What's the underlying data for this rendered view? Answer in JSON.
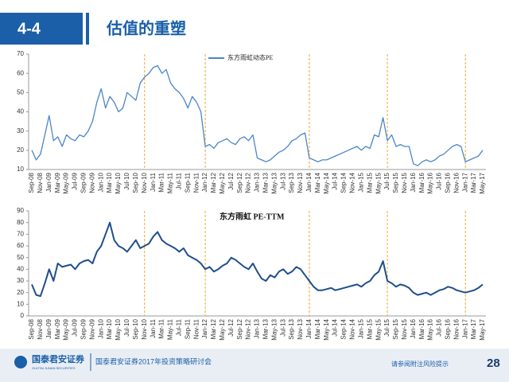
{
  "header": {
    "section": "4-4",
    "title": "估值的重塑"
  },
  "chart_data": [
    {
      "type": "line",
      "categories": [
        "Sep-08",
        null,
        "Nov-08",
        null,
        "Jan-09",
        null,
        "Mar-09",
        null,
        "May-09",
        null,
        "Jul-09",
        null,
        "Sep-09",
        null,
        "Nov-09",
        null,
        "Jan-10",
        null,
        "Mar-10",
        null,
        "May-10",
        null,
        "Jul-10",
        null,
        "Sep-10",
        null,
        "Nov-10",
        null,
        "Jan-11",
        null,
        "Mar-11",
        null,
        "May-11",
        null,
        "Jul-11",
        null,
        "Sep-11",
        null,
        "Nov-11",
        null,
        "Jan-12",
        null,
        "Mar-12",
        null,
        "May-12",
        null,
        "Jul-12",
        null,
        "Sep-12",
        null,
        "Nov-12",
        null,
        "Jan-13",
        null,
        "Mar-13",
        null,
        "May-13",
        null,
        "Jul-13",
        null,
        "Sep-13",
        null,
        "Nov-13",
        null,
        "Jan-14",
        null,
        "Mar-14",
        null,
        "May-14",
        null,
        "Jul-14",
        null,
        "Sep-14",
        null,
        "Nov-14",
        null,
        "Jan-15",
        null,
        "Mar-15",
        null,
        "May-15",
        null,
        "Jul-15",
        null,
        "Sep-15",
        null,
        "Nov-15",
        null,
        "Jan-16",
        null,
        "Mar-16",
        null,
        "May-16",
        null,
        "Jul-16",
        null,
        "Sep-16",
        null,
        "Nov-16",
        null,
        "Jan-17",
        null,
        "Mar-17",
        null,
        "May-17"
      ],
      "series": [
        {
          "name": "东方雨虹动态PE",
          "color": "#4a86c8",
          "values": [
            20,
            15,
            18,
            28,
            38,
            25,
            27,
            22,
            28,
            26,
            25,
            28,
            27,
            30,
            35,
            45,
            52,
            42,
            48,
            45,
            40,
            42,
            50,
            48,
            46,
            55,
            58,
            60,
            63,
            64,
            60,
            62,
            55,
            52,
            50,
            47,
            42,
            48,
            45,
            40,
            22,
            23,
            21,
            24,
            25,
            26,
            24,
            23,
            26,
            27,
            25,
            28,
            16,
            15,
            14,
            15,
            17,
            19,
            20,
            22,
            25,
            26,
            28,
            29,
            16,
            15,
            14,
            15,
            15,
            16,
            17,
            18,
            19,
            20,
            21,
            22,
            20,
            22,
            21,
            28,
            27,
            37,
            25,
            28,
            22,
            23,
            22,
            22,
            13,
            12,
            14,
            15,
            14,
            15,
            17,
            18,
            20,
            22,
            23,
            22,
            14,
            15,
            16,
            17,
            20
          ]
        }
      ],
      "legend": true,
      "ylim": [
        10,
        70
      ],
      "yticks": [
        10,
        20,
        30,
        40,
        50,
        60,
        70
      ]
    },
    {
      "type": "line",
      "title": "东方雨虹 PE-TTM",
      "categories": [
        "Sep-08",
        null,
        "Nov-08",
        null,
        "Jan-09",
        null,
        "Mar-09",
        null,
        "May-09",
        null,
        "Jul-09",
        null,
        "Sep-09",
        null,
        "Nov-09",
        null,
        "Jan-10",
        null,
        "Mar-10",
        null,
        "May-10",
        null,
        "Jul-10",
        null,
        "Sep-10",
        null,
        "Nov-10",
        null,
        "Jan-11",
        null,
        "Mar-11",
        null,
        "May-11",
        null,
        "Jul-11",
        null,
        "Sep-11",
        null,
        "Nov-11",
        null,
        "Jan-12",
        null,
        "Mar-12",
        null,
        "May-12",
        null,
        "Jul-12",
        null,
        "Sep-12",
        null,
        "Nov-12",
        null,
        "Jan-13",
        null,
        "Mar-13",
        null,
        "May-13",
        null,
        "Jul-13",
        null,
        "Sep-13",
        null,
        "Nov-13",
        null,
        "Jan-14",
        null,
        "Mar-14",
        null,
        "May-14",
        null,
        "Jul-14",
        null,
        "Sep-14",
        null,
        "Nov-14",
        null,
        "Jan-15",
        null,
        "Mar-15",
        null,
        "May-15",
        null,
        "Jul-15",
        null,
        "Sep-15",
        null,
        "Nov-15",
        null,
        "Jan-16",
        null,
        "Mar-16",
        null,
        "May-16",
        null,
        "Jul-16",
        null,
        "Sep-16",
        null,
        "Nov-16",
        null,
        "Jan-17",
        null,
        "Mar-17",
        null,
        "May-17"
      ],
      "series": [
        {
          "color": "#1f4e8c",
          "values": [
            27,
            18,
            17,
            28,
            40,
            30,
            45,
            42,
            43,
            44,
            40,
            45,
            47,
            48,
            45,
            55,
            60,
            70,
            80,
            65,
            60,
            58,
            55,
            60,
            65,
            58,
            60,
            62,
            68,
            72,
            65,
            62,
            60,
            58,
            55,
            58,
            52,
            50,
            48,
            45,
            40,
            42,
            38,
            40,
            43,
            45,
            50,
            48,
            45,
            42,
            40,
            45,
            38,
            32,
            30,
            35,
            33,
            38,
            40,
            36,
            38,
            42,
            40,
            35,
            30,
            25,
            22,
            22,
            23,
            24,
            22,
            23,
            24,
            25,
            26,
            27,
            25,
            28,
            30,
            35,
            38,
            47,
            30,
            28,
            25,
            27,
            26,
            24,
            20,
            18,
            19,
            20,
            18,
            20,
            22,
            23,
            25,
            24,
            22,
            21,
            20,
            21,
            22,
            24,
            27
          ]
        }
      ],
      "ylim": [
        0,
        90
      ],
      "yticks": [
        0,
        10,
        20,
        30,
        40,
        50,
        60,
        70,
        80,
        90
      ]
    }
  ],
  "footer": {
    "logo": "国泰君安证券",
    "logo_en": "GUOTAI JUNAN SECURITIES",
    "event": "国泰君安证券2017年投资策略研讨会",
    "disclaimer": "请参阅附注风险提示",
    "page": "28"
  }
}
